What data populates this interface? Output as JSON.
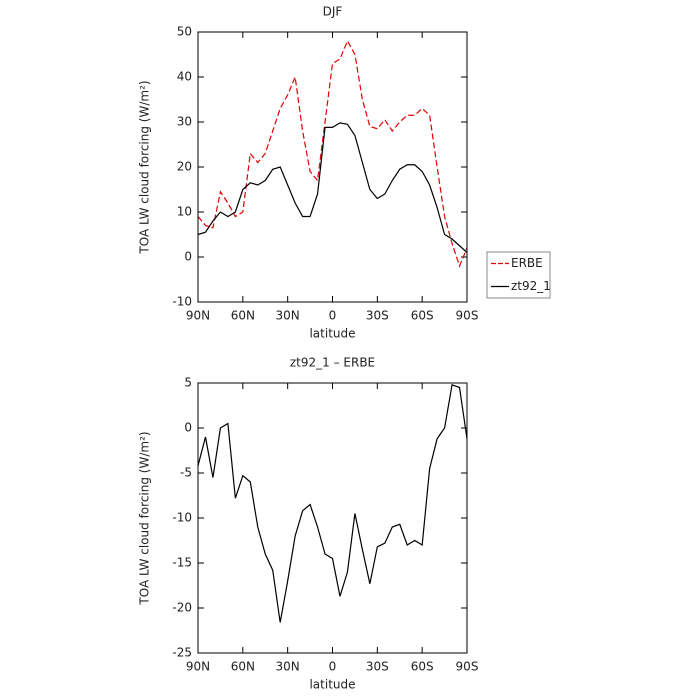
{
  "chart_data": [
    {
      "type": "line",
      "title": "DJF",
      "xlabel": "latitude",
      "ylabel": "TOA LW cloud forcing (W/m²)",
      "x": [
        90,
        85,
        80,
        75,
        70,
        65,
        60,
        55,
        50,
        45,
        40,
        35,
        30,
        25,
        20,
        15,
        10,
        5,
        0,
        -5,
        -10,
        -15,
        -20,
        -25,
        -30,
        -35,
        -40,
        -45,
        -50,
        -55,
        -60,
        -65,
        -70,
        -75,
        -80,
        -85,
        -90
      ],
      "series": [
        {
          "name": "ERBE",
          "color": "#e00000",
          "dash": "dashed",
          "values": [
            9,
            7,
            6.5,
            14.5,
            12,
            9,
            10,
            23,
            21,
            23,
            28,
            33,
            36,
            40,
            28,
            19,
            17,
            30,
            43,
            44,
            48,
            45,
            35,
            29,
            28.5,
            30.5,
            28,
            30,
            31.5,
            31.5,
            33,
            31.5,
            20,
            9,
            3,
            -2,
            2
          ]
        },
        {
          "name": "zt92_1",
          "color": "#000000",
          "dash": "solid",
          "values": [
            5,
            5.5,
            8,
            10,
            9,
            10,
            15,
            16.5,
            16,
            17,
            19.5,
            20,
            16,
            12,
            9,
            9,
            14,
            28.8,
            28.8,
            29.8,
            29.5,
            27,
            21,
            15,
            13,
            14,
            17,
            19.5,
            20.5,
            20.5,
            19,
            16,
            11,
            5,
            4,
            2.5,
            1
          ]
        }
      ],
      "xlim": [
        90,
        -90
      ],
      "xticks": [
        {
          "value": 90,
          "label": "90N"
        },
        {
          "value": 60,
          "label": "60N"
        },
        {
          "value": 30,
          "label": "30N"
        },
        0,
        {
          "value": -30,
          "label": "30S"
        },
        {
          "value": -60,
          "label": "60S"
        },
        {
          "value": -90,
          "label": "90S"
        }
      ],
      "ylim": [
        -10,
        50
      ],
      "yticks": [
        -10,
        0,
        10,
        20,
        30,
        40,
        50
      ],
      "legend": "outside-lower-right"
    },
    {
      "type": "line",
      "title": "zt92_1 – ERBE",
      "xlabel": "latitude",
      "ylabel": "TOA LW cloud forcing (W/m²)",
      "x": [
        90,
        85,
        80,
        75,
        70,
        65,
        60,
        55,
        50,
        45,
        40,
        35,
        30,
        25,
        20,
        15,
        10,
        5,
        0,
        -5,
        -10,
        -15,
        -20,
        -25,
        -30,
        -35,
        -40,
        -45,
        -50,
        -55,
        -60,
        -65,
        -70,
        -75,
        -80,
        -85,
        -90
      ],
      "color": "#000000",
      "values": [
        -4.2,
        -1,
        -5.5,
        0,
        0.5,
        -7.8,
        -5.3,
        -6,
        -11,
        -14,
        -15.8,
        -21.6,
        -17,
        -12,
        -9.2,
        -8.5,
        -11,
        -14,
        -14.5,
        -18.7,
        -16,
        -9.5,
        -13.5,
        -17.3,
        -13.2,
        -12.8,
        -11,
        -10.7,
        -13,
        -12.5,
        -13,
        -4.5,
        -1.2,
        0,
        4.8,
        4.5,
        -1.2
      ],
      "xlim": [
        90,
        -90
      ],
      "xticks": [
        {
          "value": 90,
          "label": "90N"
        },
        {
          "value": 60,
          "label": "60N"
        },
        {
          "value": 30,
          "label": "30N"
        },
        0,
        {
          "value": -30,
          "label": "30S"
        },
        {
          "value": -60,
          "label": "60S"
        },
        {
          "value": -90,
          "label": "90S"
        }
      ],
      "ylim": [
        -25,
        5
      ],
      "yticks": [
        -25,
        -20,
        -15,
        -10,
        -5,
        0,
        5
      ]
    }
  ]
}
